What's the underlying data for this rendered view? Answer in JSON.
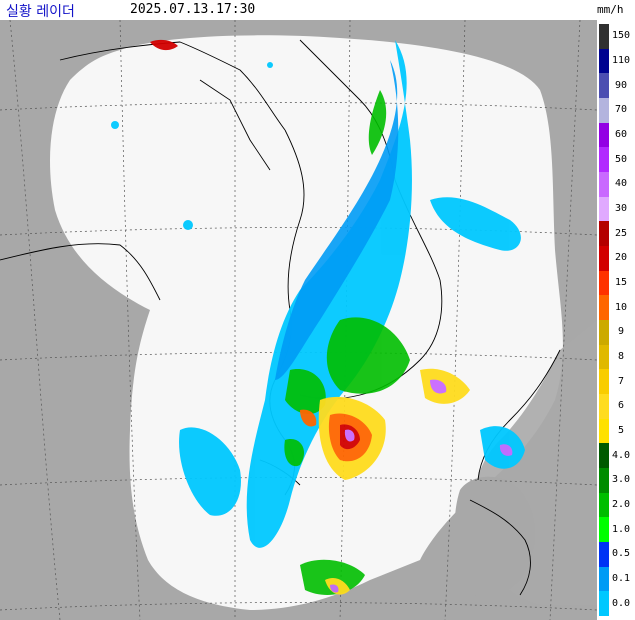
{
  "header": {
    "title": "실황 레이더",
    "timestamp": "2025.07.13.17:30",
    "unit": "mm/h"
  },
  "colors": {
    "background_land": "#a8a8a8",
    "radar_coverage": "#f7f7f7",
    "coastline": "#000000",
    "grid": "#555555"
  },
  "legend": {
    "levels": [
      {
        "label": "150",
        "color": "#303030"
      },
      {
        "label": "110",
        "color": "#000390"
      },
      {
        "label": "90",
        "color": "#4c4eb1"
      },
      {
        "label": "70",
        "color": "#b3b4de"
      },
      {
        "label": "60",
        "color": "#9300e4"
      },
      {
        "label": "50",
        "color": "#b229ff"
      },
      {
        "label": "40",
        "color": "#c969ff"
      },
      {
        "label": "30",
        "color": "#e0a9ff"
      },
      {
        "label": "25",
        "color": "#b40000"
      },
      {
        "label": "20",
        "color": "#d20000"
      },
      {
        "label": "15",
        "color": "#ff3200"
      },
      {
        "label": "10",
        "color": "#ff6600"
      },
      {
        "label": "9",
        "color": "#ccaa00"
      },
      {
        "label": "8",
        "color": "#e0b900"
      },
      {
        "label": "7",
        "color": "#f9cd00"
      },
      {
        "label": "6",
        "color": "#ffdc1f"
      },
      {
        "label": "5",
        "color": "#ffe100"
      },
      {
        "label": "4.0",
        "color": "#005a00"
      },
      {
        "label": "3.0",
        "color": "#008c00"
      },
      {
        "label": "2.0",
        "color": "#00be00"
      },
      {
        "label": "1.0",
        "color": "#00ff00"
      },
      {
        "label": "0.5",
        "color": "#0033f5"
      },
      {
        "label": "0.1",
        "color": "#009bf5"
      },
      {
        "label": "0.0",
        "color": "#00c8ff"
      }
    ]
  }
}
